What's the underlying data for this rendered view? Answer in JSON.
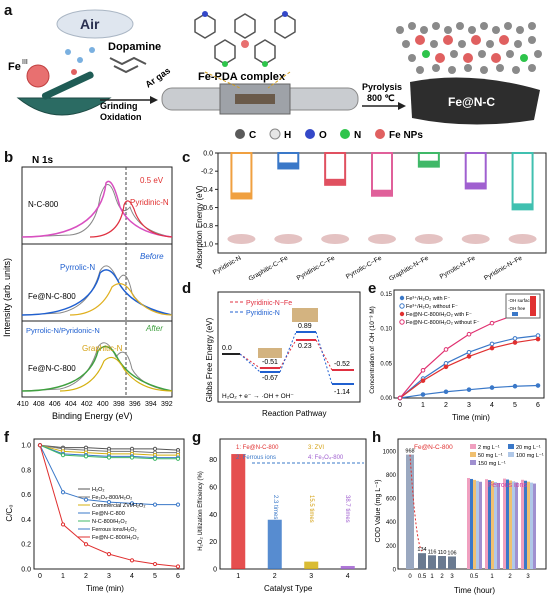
{
  "panels": {
    "a": {
      "letter": "a",
      "labels": {
        "air": "Air",
        "dopamine": "Dopamine",
        "fe3": "Fe",
        "fe3_sup": "III",
        "grinding": "Grinding",
        "oxidation": "Oxidation",
        "ar_gas": "Ar gas",
        "complex": "Fe-PDA complex",
        "pyrolysis": "Pyrolysis",
        "temp": "800 ℃",
        "product": "Fe@N-C"
      },
      "legend": [
        {
          "label": "C",
          "color": "#5a5a5a"
        },
        {
          "label": "H",
          "color": "#e6e6e6"
        },
        {
          "label": "O",
          "color": "#3448c8"
        },
        {
          "label": "N",
          "color": "#2ec44b"
        },
        {
          "label": "Fe NPs",
          "color": "#e06060"
        }
      ]
    },
    "b": {
      "letter": "b",
      "title": "N 1s",
      "ylabel": "Intensity (arb. units)",
      "xlabel": "Binding Energy (eV)",
      "xticks": [
        "410",
        "408",
        "406",
        "404",
        "402",
        "400",
        "398",
        "396",
        "394",
        "392"
      ],
      "sub": [
        {
          "sample": "N-C-800",
          "notes": [
            "0.5 eV",
            "Pyridinic-N"
          ]
        },
        {
          "sample": "Fe@N-C-800",
          "notes": [
            "Pyrrolic-N",
            "Before"
          ]
        },
        {
          "sample": "Fe@N-C-800",
          "notes": [
            "Pyrrolic-N/Pyridonic-N",
            "Graphitic-N",
            "After"
          ]
        }
      ]
    },
    "c": {
      "letter": "c",
      "ylabel": "Adsorption Energy (eV)",
      "yticks": [
        "0.0",
        "-0.2",
        "-0.4",
        "-0.6",
        "-0.8",
        "-1.0"
      ],
      "bars": [
        {
          "label": "Pyridinic-N",
          "color": "#f0a040"
        },
        {
          "label": "Graphitic-C−Fe",
          "color": "#3a78c8"
        },
        {
          "label": "Pyridinic-C−Fe",
          "color": "#e05060"
        },
        {
          "label": "Pyrrolic-C−Fe",
          "color": "#e0609a"
        },
        {
          "label": "Graphitic-N−Fe",
          "color": "#40b868"
        },
        {
          "label": "Pyrrolic-N−Fe",
          "color": "#a060d0"
        },
        {
          "label": "Pyridinic-N−Fe",
          "color": "#40c0b0"
        }
      ]
    },
    "d": {
      "letter": "d",
      "ylabel": "Gibbs Free Energy (eV)",
      "xlabel": "Reaction Pathway",
      "legend": [
        "Pyridinic-N−Fe",
        "Pyridinic-N"
      ],
      "values": [
        "0.0",
        "-0.51",
        "-0.67",
        "0.89",
        "0.23",
        "-0.52",
        "-1.14"
      ],
      "equation": "H₂O₂ + e⁻ → ·OH + OH⁻"
    },
    "e": {
      "letter": "e",
      "ylabel": "Concentration of ·OH (10⁻³ M)",
      "xlabel": "Time (min)",
      "xticks": [
        "0",
        "1",
        "2",
        "3",
        "4",
        "5",
        "6"
      ],
      "yticks": [
        "0.00",
        "0.05",
        "0.10",
        "0.15"
      ],
      "legend": [
        {
          "label": "Fe³⁺/H₂O₂ with F⁻",
          "color": "#3a78c8"
        },
        {
          "label": "Fe³⁺/H₂O₂ without F⁻",
          "color": "#3a78c8"
        },
        {
          "label": "Fe@N-C-800/H₂O₂ with F⁻",
          "color": "#e03030"
        },
        {
          "label": "Fe@N-C-800/H₂O₂ without F⁻",
          "color": "#e03070"
        }
      ],
      "inset": [
        "·OH surface",
        "·OH free"
      ]
    },
    "f": {
      "letter": "f",
      "ylabel": "C/C₀",
      "xlabel": "Time (min)",
      "xticks": [
        "0",
        "1",
        "2",
        "3",
        "4",
        "5",
        "6"
      ],
      "yticks": [
        "0.0",
        "0.2",
        "0.4",
        "0.6",
        "0.8",
        "1.0"
      ],
      "legend": [
        {
          "label": "H₂O₂",
          "color": "#555555"
        },
        {
          "label": "Fe₃O₄-800/H₂O₂",
          "color": "#777777"
        },
        {
          "label": "Commercial ZVI/H₂O₂",
          "color": "#d4b010"
        },
        {
          "label": "Fe@N-C-800",
          "color": "#3a78c8"
        },
        {
          "label": "N-C-800/H₂O₂",
          "color": "#40b868"
        },
        {
          "label": "Ferrous ions/H₂O₂",
          "color": "#3a78c8"
        },
        {
          "label": "Fe@N-C-800/H₂O₂",
          "color": "#e03030"
        }
      ]
    },
    "g": {
      "letter": "g",
      "ylabel": "H₂O₂ Utilization Efficiency (%)",
      "xlabel": "Catalyst Type",
      "xticks": [
        "1",
        "2",
        "3",
        "4"
      ],
      "yticks": [
        "0",
        "20",
        "40",
        "60",
        "80"
      ],
      "legend": [
        {
          "label": "1: Fe@N-C-800",
          "color": "#e03030"
        },
        {
          "label": "2: Ferrous ions",
          "color": "#3a78c8"
        },
        {
          "label": "3: ZVI",
          "color": "#d4b010"
        },
        {
          "label": "4: Fe₃O₄-800",
          "color": "#a060d0"
        }
      ],
      "ratios": [
        "2.3 times",
        "15.5 times",
        "38.7 times"
      ]
    },
    "h": {
      "letter": "h",
      "ylabel": "COD Value (mg L⁻¹)",
      "xlabel": "Time (hour)",
      "title": "Fe@N-C-800",
      "group_title": "Ferrous ions",
      "xticks": [
        "0",
        "0.5",
        "1",
        "2",
        "3",
        "0.5",
        "1",
        "2",
        "3"
      ],
      "yticks": [
        "0",
        "200",
        "400",
        "600",
        "800",
        "1000"
      ],
      "bar_labels": [
        "968",
        "134",
        "116",
        "110",
        "106"
      ],
      "legend": [
        {
          "label": "2 mg L⁻¹",
          "color": "#f0a0c0"
        },
        {
          "label": "20 mg L⁻¹",
          "color": "#3a78c8"
        },
        {
          "label": "50 mg L⁻¹",
          "color": "#f0c070"
        },
        {
          "label": "100 mg L⁻¹",
          "color": "#b0c8e8"
        },
        {
          "label": "150 mg L⁻¹",
          "color": "#a090d0"
        }
      ]
    }
  },
  "chart_data": [
    {
      "type": "bar",
      "panel": "c",
      "ylabel": "Adsorption Energy (eV)",
      "ylim": [
        -1.1,
        0.0
      ],
      "categories": [
        "Pyridinic-N",
        "Graphitic-C−Fe",
        "Pyridinic-C−Fe",
        "Pyrrolic-C−Fe",
        "Graphitic-N−Fe",
        "Pyrrolic-N−Fe",
        "Pyridinic-N−Fe"
      ],
      "values": [
        -0.5,
        -0.17,
        -0.35,
        -0.47,
        -0.15,
        -0.39,
        -0.62
      ]
    },
    {
      "type": "line",
      "panel": "e",
      "xlabel": "Time (min)",
      "ylabel": "Concentration of ·OH (10⁻³ M)",
      "x": [
        0,
        1,
        2,
        3,
        4,
        5,
        6
      ],
      "series": [
        {
          "name": "Fe³⁺/H₂O₂ with F⁻",
          "values": [
            0,
            0.005,
            0.009,
            0.012,
            0.015,
            0.017,
            0.018
          ]
        },
        {
          "name": "Fe³⁺/H₂O₂ without F⁻",
          "values": [
            0,
            0.028,
            0.05,
            0.066,
            0.078,
            0.086,
            0.09
          ]
        },
        {
          "name": "Fe@N-C-800/H₂O₂ with F⁻",
          "values": [
            0,
            0.025,
            0.045,
            0.06,
            0.072,
            0.08,
            0.085
          ]
        },
        {
          "name": "Fe@N-C-800/H₂O₂ without F⁻",
          "values": [
            0,
            0.04,
            0.07,
            0.092,
            0.108,
            0.12,
            0.13
          ]
        }
      ]
    },
    {
      "type": "line",
      "panel": "f",
      "xlabel": "Time (min)",
      "ylabel": "C/C₀",
      "ylim": [
        0,
        1.05
      ],
      "x": [
        0,
        1,
        2,
        3,
        4,
        5,
        6
      ],
      "series": [
        {
          "name": "H₂O₂",
          "values": [
            1,
            0.98,
            0.98,
            0.97,
            0.97,
            0.97,
            0.96
          ]
        },
        {
          "name": "Fe₃O₄-800/H₂O₂",
          "values": [
            1,
            0.97,
            0.96,
            0.95,
            0.95,
            0.94,
            0.94
          ]
        },
        {
          "name": "Commercial ZVI/H₂O₂",
          "values": [
            1,
            0.95,
            0.94,
            0.93,
            0.93,
            0.92,
            0.92
          ]
        },
        {
          "name": "Fe@N-C-800",
          "values": [
            1,
            0.93,
            0.92,
            0.91,
            0.91,
            0.9,
            0.9
          ]
        },
        {
          "name": "N-C-800/H₂O₂",
          "values": [
            1,
            0.92,
            0.91,
            0.9,
            0.9,
            0.89,
            0.89
          ]
        },
        {
          "name": "Ferrous ions/H₂O₂",
          "values": [
            1,
            0.62,
            0.56,
            0.54,
            0.53,
            0.52,
            0.52
          ]
        },
        {
          "name": "Fe@N-C-800/H₂O₂",
          "values": [
            1,
            0.36,
            0.2,
            0.12,
            0.07,
            0.04,
            0.02
          ]
        }
      ]
    },
    {
      "type": "bar",
      "panel": "g",
      "xlabel": "Catalyst Type",
      "ylabel": "H₂O₂ Utilization Efficiency (%)",
      "ylim": [
        0,
        95
      ],
      "categories": [
        "1",
        "2",
        "3",
        "4"
      ],
      "values": [
        84,
        36,
        5.4,
        2.2
      ]
    },
    {
      "type": "bar",
      "panel": "h",
      "xlabel": "Time (hour)",
      "ylabel": "COD Value (mg L⁻¹)",
      "ylim": [
        0,
        1100
      ],
      "categories": [
        "0",
        "0.5",
        "1",
        "2",
        "3"
      ],
      "values": [
        968,
        134,
        116,
        110,
        106
      ]
    }
  ]
}
